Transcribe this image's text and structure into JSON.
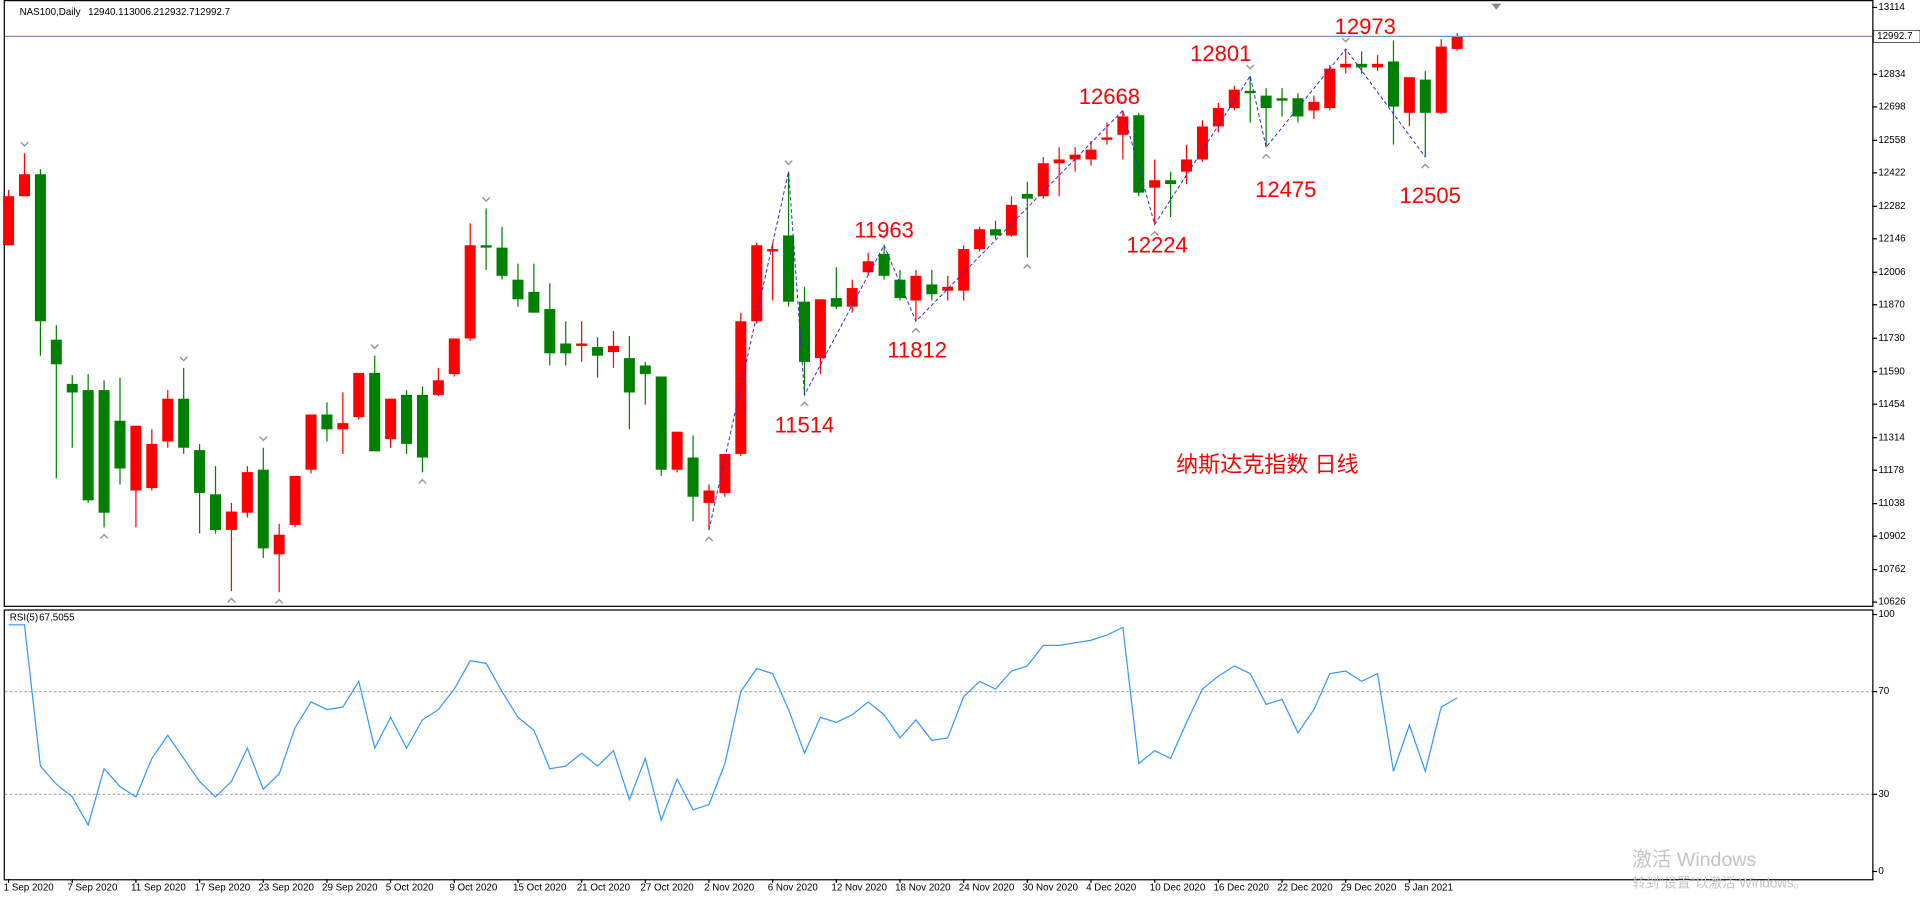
{
  "chart_data": [
    {
      "type": "candlestick",
      "title": "NAS100,Daily",
      "up_color": "#ff0000",
      "down_color": "#008000",
      "price_line_color": "#7d8fbf",
      "ylim": [
        10611,
        13145
      ],
      "yticks": [
        10626,
        10762,
        10902,
        11038,
        11178,
        11314,
        11454,
        11590,
        11730,
        11870,
        12006,
        12146,
        12282,
        12422,
        12558,
        12698,
        12834,
        13114
      ],
      "open": [
        12119,
        12324,
        12416,
        11724,
        11539,
        11513,
        11513,
        11385,
        11093,
        11103,
        11298,
        11477,
        11262,
        11077,
        10928,
        11000,
        11180,
        10826,
        10949,
        11180,
        11411,
        11349,
        11400,
        11585,
        11308,
        11493,
        11493,
        11493,
        11580,
        11729,
        12119,
        12109,
        11975,
        11924,
        11852,
        11708,
        11698,
        11693,
        11672,
        11647,
        11616,
        11570,
        11180,
        11231,
        11041,
        11082,
        11246,
        11801,
        12093,
        12160,
        11883,
        11647,
        11898,
        11862,
        12006,
        12083,
        11975,
        11888,
        11955,
        11929,
        11929,
        12103,
        12186,
        12160,
        12334,
        12324,
        12462,
        12478,
        12478,
        12560,
        12581,
        12663,
        12360,
        12391,
        12427,
        12478,
        12616,
        12693,
        12765,
        12745,
        12734,
        12734,
        12683,
        12693,
        12863,
        12878,
        12863,
        12888,
        12673,
        12812,
        12673,
        12940.1
      ],
      "high": [
        12350,
        12504,
        12437,
        11785,
        11575,
        11580,
        11554,
        11565,
        11364,
        11349,
        11513,
        11606,
        11287,
        11195,
        11041,
        11195,
        11272,
        10954,
        11154,
        11411,
        11462,
        11503,
        11585,
        11657,
        11477,
        11513,
        11529,
        11606,
        11729,
        12211,
        12273,
        12196,
        12042,
        12042,
        11960,
        11801,
        11801,
        11734,
        11760,
        11739,
        11631,
        11570,
        11339,
        11323,
        11118,
        11246,
        11836,
        12129,
        12129,
        12427,
        11945,
        11893,
        12027,
        11975,
        12088,
        12119,
        12016,
        12016,
        12016,
        11991,
        12119,
        12196,
        12222,
        12324,
        12385,
        12488,
        12529,
        12529,
        12555,
        12632,
        12683,
        12673,
        12478,
        12427,
        12539,
        12642,
        12714,
        12786,
        12827,
        12776,
        12776,
        12755,
        12745,
        12873,
        12940,
        12930,
        12914,
        12976,
        12822,
        12848,
        12981,
        13006.2
      ],
      "low": [
        12119,
        12324,
        11657,
        11144,
        11272,
        11041,
        10939,
        11118,
        10939,
        11093,
        11272,
        11246,
        10913,
        10913,
        10672,
        10980,
        10810,
        10667,
        10939,
        11164,
        11298,
        11246,
        11390,
        11257,
        11272,
        11246,
        11169,
        11488,
        11570,
        11719,
        12016,
        11975,
        11862,
        11837,
        11616,
        11616,
        11631,
        11565,
        11606,
        11349,
        11452,
        11154,
        11169,
        10965,
        10928,
        11067,
        11237,
        11791,
        11888,
        11862,
        11493,
        11580,
        11852,
        11837,
        11991,
        11975,
        11888,
        11801,
        11888,
        11888,
        11888,
        12093,
        12145,
        12155,
        12068,
        12314,
        12324,
        12427,
        12452,
        12540,
        12478,
        12324,
        12206,
        12237,
        12375,
        12468,
        12591,
        12683,
        12632,
        12529,
        12658,
        12632,
        12647,
        12683,
        12837,
        12837,
        12847,
        12540,
        12617,
        12488,
        12668,
        12932.7
      ],
      "close": [
        12324,
        12416,
        11801,
        11621,
        11503,
        11052,
        11000,
        11185,
        11364,
        11288,
        11477,
        11272,
        11083,
        10928,
        11005,
        11170,
        10851,
        10908,
        11154,
        11411,
        11349,
        11375,
        11585,
        11257,
        11477,
        11288,
        11231,
        11554,
        11729,
        12119,
        12109,
        11991,
        11893,
        11837,
        11667,
        11667,
        11708,
        11657,
        11698,
        11503,
        11580,
        11180,
        11339,
        11067,
        11093,
        11246,
        11801,
        12119,
        12103,
        11883,
        11631,
        11893,
        11862,
        11940,
        12052,
        11991,
        11898,
        11991,
        11914,
        11945,
        12103,
        12186,
        12160,
        12288,
        12314,
        12462,
        12478,
        12498,
        12519,
        12570,
        12658,
        12339,
        12391,
        12375,
        12478,
        12616,
        12693,
        12770,
        12755,
        12693,
        12724,
        12658,
        12719,
        12858,
        12878,
        12863,
        12878,
        12699,
        12822,
        12673,
        12950,
        12992.7
      ],
      "annotations": [
        {
          "text": "12973"
        },
        {
          "text": "12801"
        },
        {
          "text": "12668"
        },
        {
          "text": "11963"
        },
        {
          "text": "11812"
        },
        {
          "text": "11514"
        },
        {
          "text": "12224"
        },
        {
          "text": "12475"
        },
        {
          "text": "12505"
        },
        {
          "text": "纳斯达克指数 日线"
        }
      ],
      "annotation_color": "#ff0000"
    },
    {
      "type": "line",
      "title": "RSI(5)",
      "color": "#3399ff",
      "ylim": [
        -3,
        102
      ],
      "yticks": [
        0,
        30,
        70,
        100
      ],
      "levels": [
        30,
        70
      ],
      "categories": [
        "1 Sep 2020",
        null,
        null,
        null,
        "7 Sep 2020",
        null,
        null,
        null,
        "11 Sep 2020",
        null,
        null,
        null,
        "17 Sep 2020",
        null,
        null,
        null,
        "23 Sep 2020",
        null,
        null,
        null,
        "29 Sep 2020",
        null,
        null,
        null,
        "5 Oct 2020",
        null,
        null,
        null,
        "9 Oct 2020",
        null,
        null,
        null,
        "15 Oct 2020",
        null,
        null,
        null,
        "21 Oct 2020",
        null,
        null,
        null,
        "27 Oct 2020",
        null,
        null,
        null,
        "2 Nov 2020",
        null,
        null,
        null,
        "6 Nov 2020",
        null,
        null,
        null,
        "12 Nov 2020",
        null,
        null,
        null,
        "18 Nov 2020",
        null,
        null,
        null,
        "24 Nov 2020",
        null,
        null,
        null,
        "30 Nov 2020",
        null,
        null,
        null,
        "4 Dec 2020",
        null,
        null,
        null,
        "10 Dec 2020",
        null,
        null,
        null,
        "16 Dec 2020",
        null,
        null,
        null,
        "22 Dec 2020",
        null,
        null,
        null,
        "29 Dec 2020",
        null,
        null,
        null,
        "5 Jan 2021",
        null,
        null,
        null
      ],
      "values": [
        96,
        96,
        41,
        34,
        29,
        18,
        40,
        33,
        29,
        44,
        53,
        44,
        35,
        29,
        35,
        48,
        32,
        38,
        56,
        66,
        63,
        64,
        74,
        48,
        60,
        48,
        59,
        63,
        71,
        82,
        81,
        70,
        60,
        55,
        40,
        41,
        46,
        41,
        47,
        28,
        44,
        20,
        36,
        24,
        26,
        42,
        70,
        79,
        77,
        63,
        46,
        60,
        58,
        61,
        66,
        61,
        52,
        59,
        51,
        52,
        68,
        74,
        71,
        78,
        80,
        88,
        88,
        89,
        90,
        92,
        95,
        42,
        47,
        44,
        58,
        71,
        76,
        80,
        77,
        65,
        67,
        54,
        63,
        77,
        78,
        74,
        77,
        39,
        57,
        39,
        64,
        67.5055
      ]
    }
  ],
  "watermark": {
    "title": "激活 Windows",
    "subtitle": "转到“设置”以激活 Windows。"
  }
}
